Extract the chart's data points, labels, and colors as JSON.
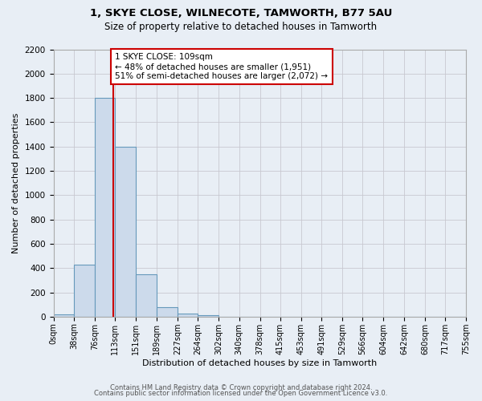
{
  "title1": "1, SKYE CLOSE, WILNECOTE, TAMWORTH, B77 5AU",
  "title2": "Size of property relative to detached houses in Tamworth",
  "xlabel": "Distribution of detached houses by size in Tamworth",
  "ylabel": "Number of detached properties",
  "bin_edges": [
    0,
    38,
    76,
    113,
    151,
    189,
    227,
    264,
    302,
    340,
    378,
    415,
    453,
    491,
    529,
    566,
    604,
    642,
    680,
    717,
    755
  ],
  "bin_labels": [
    "0sqm",
    "38sqm",
    "76sqm",
    "113sqm",
    "151sqm",
    "189sqm",
    "227sqm",
    "264sqm",
    "302sqm",
    "340sqm",
    "378sqm",
    "415sqm",
    "453sqm",
    "491sqm",
    "529sqm",
    "566sqm",
    "604sqm",
    "642sqm",
    "680sqm",
    "717sqm",
    "755sqm"
  ],
  "counts": [
    20,
    430,
    1800,
    1400,
    350,
    80,
    25,
    10,
    0,
    0,
    0,
    0,
    0,
    0,
    0,
    0,
    0,
    0,
    0,
    0
  ],
  "bar_facecolor": "#ccdaeb",
  "bar_edgecolor": "#6699bb",
  "property_value": 109,
  "vline_color": "#cc0000",
  "annotation_line1": "1 SKYE CLOSE: 109sqm",
  "annotation_line2": "← 48% of detached houses are smaller (1,951)",
  "annotation_line3": "51% of semi-detached houses are larger (2,072) →",
  "annotation_box_edgecolor": "#cc0000",
  "annotation_box_facecolor": "#ffffff",
  "ylim": [
    0,
    2200
  ],
  "yticks": [
    0,
    200,
    400,
    600,
    800,
    1000,
    1200,
    1400,
    1600,
    1800,
    2000,
    2200
  ],
  "footer1": "Contains HM Land Registry data © Crown copyright and database right 2024.",
  "footer2": "Contains public sector information licensed under the Open Government Licence v3.0.",
  "grid_color": "#c8c8d0",
  "background_color": "#e8eef5"
}
